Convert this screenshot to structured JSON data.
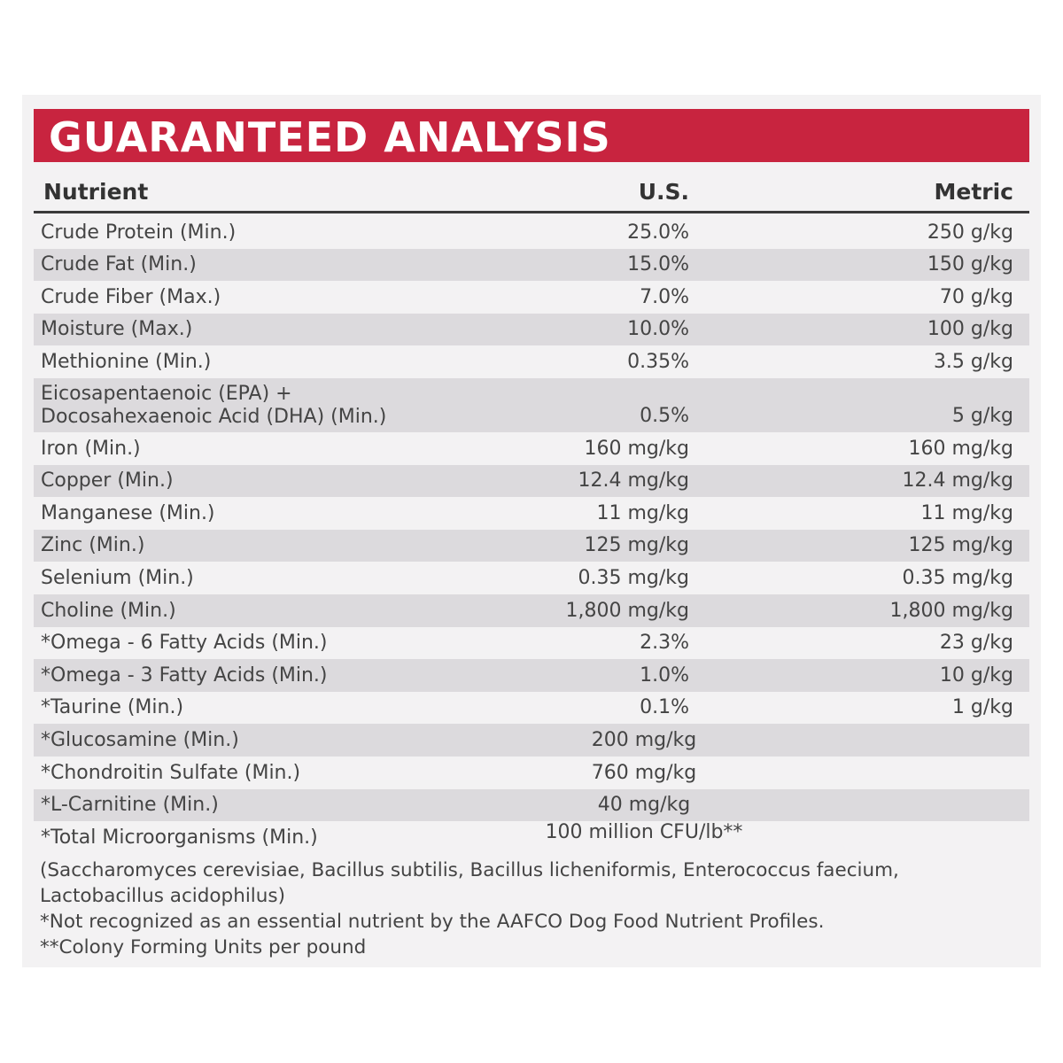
{
  "title": "GUARANTEED ANALYSIS",
  "header": {
    "nutrient": "Nutrient",
    "us": "U.S.",
    "metric": "Metric"
  },
  "rows": [
    {
      "name": "Crude Protein (Min.)",
      "us": "25.0%",
      "metric": "250 g/kg"
    },
    {
      "name": "Crude Fat (Min.)",
      "us": "15.0%",
      "metric": "150 g/kg"
    },
    {
      "name": "Crude Fiber (Max.)",
      "us": "7.0%",
      "metric": "70 g/kg"
    },
    {
      "name": "Moisture (Max.)",
      "us": "10.0%",
      "metric": "100 g/kg"
    },
    {
      "name": "Methionine (Min.)",
      "us": "0.35%",
      "metric": "3.5 g/kg"
    },
    {
      "name": "Eicosapentaenoic (EPA) +",
      "name2": "Docosahexaenoic Acid (DHA) (Min.)",
      "us": "0.5%",
      "metric": "5 g/kg"
    },
    {
      "name": "Iron (Min.)",
      "us": "160 mg/kg",
      "metric": "160 mg/kg"
    },
    {
      "name": "Copper (Min.)",
      "us": "12.4 mg/kg",
      "metric": "12.4 mg/kg"
    },
    {
      "name": "Manganese (Min.)",
      "us": "11 mg/kg",
      "metric": "11 mg/kg"
    },
    {
      "name": "Zinc (Min.)",
      "us": "125 mg/kg",
      "metric": "125 mg/kg"
    },
    {
      "name": "Selenium (Min.)",
      "us": "0.35 mg/kg",
      "metric": "0.35 mg/kg"
    },
    {
      "name": "Choline (Min.)",
      "us": "1,800 mg/kg",
      "metric": "1,800 mg/kg"
    },
    {
      "name": "*Omega - 6 Fatty Acids (Min.)",
      "us": "2.3%",
      "metric": "23 g/kg"
    },
    {
      "name": "*Omega - 3 Fatty Acids (Min.)",
      "us": "1.0%",
      "metric": "10 g/kg"
    },
    {
      "name": "*Taurine (Min.)",
      "us": "0.1%",
      "metric": "1 g/kg"
    },
    {
      "name": "*Glucosamine (Min.)",
      "combined": "200 mg/kg"
    },
    {
      "name": "*Chondroitin Sulfate (Min.)",
      "combined": "760 mg/kg"
    },
    {
      "name": "*L-Carnitine (Min.)",
      "combined": "40 mg/kg"
    },
    {
      "name": "*Total Microorganisms (Min.)",
      "combined": "100 million CFU/lb**"
    }
  ],
  "notes": {
    "species": "(Saccharomyces cerevisiae, Bacillus subtilis, Bacillus licheniformis, Enterococcus faecium,",
    "species2": "Lactobacillus acidophilus)",
    "footnote1": "*Not recognized as an essential nutrient by the AAFCO Dog Food Nutrient Profiles.",
    "footnote2": "**Colony Forming Units per pound"
  },
  "colors": {
    "banner": "#c8243f",
    "shade": "#dcdadd",
    "panel": "#f3f2f3"
  }
}
